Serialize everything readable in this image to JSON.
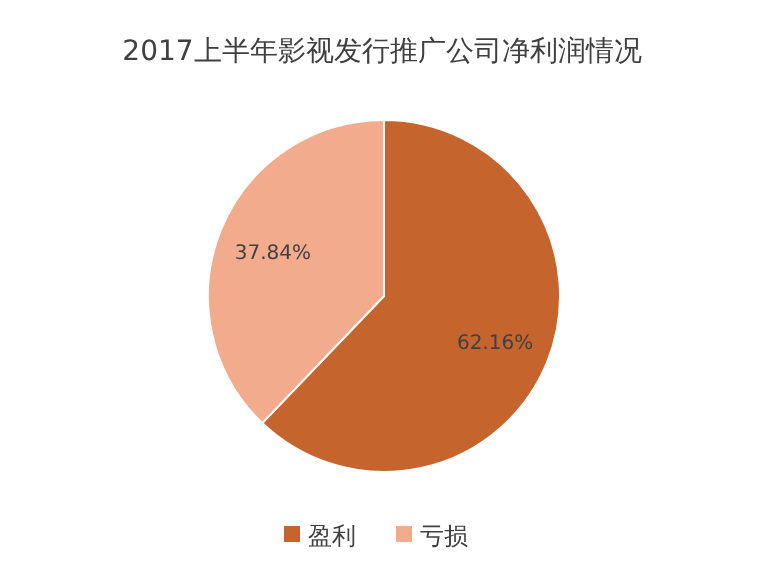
{
  "chart_data": {
    "type": "pie",
    "title": "2017上半年影视发行推广公司净利润情况",
    "categories": [
      "盈利",
      "亏损"
    ],
    "values": [
      62.16,
      37.84
    ],
    "colors": [
      "#c5652d",
      "#f2ab8c"
    ],
    "value_labels": [
      "62.16%",
      "37.84%"
    ],
    "legend": "bottom"
  }
}
